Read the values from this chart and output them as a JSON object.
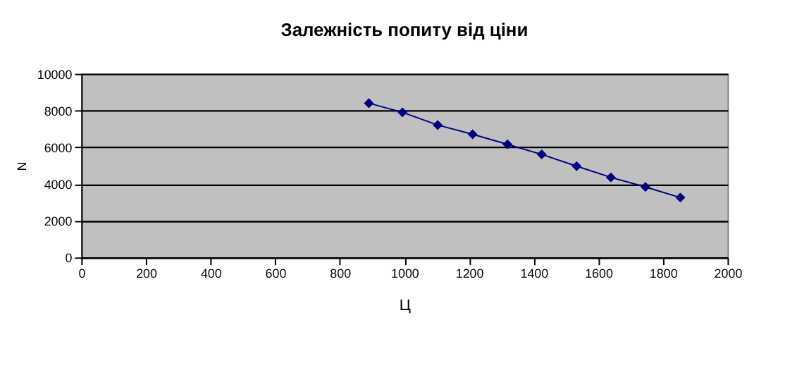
{
  "chart_data": {
    "type": "line",
    "title": "Залежність попиту від ціни",
    "xlabel": "Ц",
    "ylabel": "N",
    "x": [
      890,
      994,
      1103,
      1211,
      1319,
      1425,
      1533,
      1639,
      1746,
      1854
    ],
    "series": [
      {
        "color": "#000080",
        "values": [
          8400,
          7900,
          7210,
          6710,
          6160,
          5610,
          4970,
          4360,
          3840,
          3260
        ]
      }
    ],
    "xlim": [
      0,
      2000
    ],
    "xticks": [
      0,
      200,
      400,
      600,
      800,
      1000,
      1200,
      1400,
      1600,
      1800,
      2000
    ],
    "ylim": [
      0,
      10000
    ],
    "yticks": [
      0,
      2000,
      4000,
      6000,
      8000,
      10000
    ],
    "grid": "y",
    "marker": "diamond",
    "line_style": "solid"
  }
}
